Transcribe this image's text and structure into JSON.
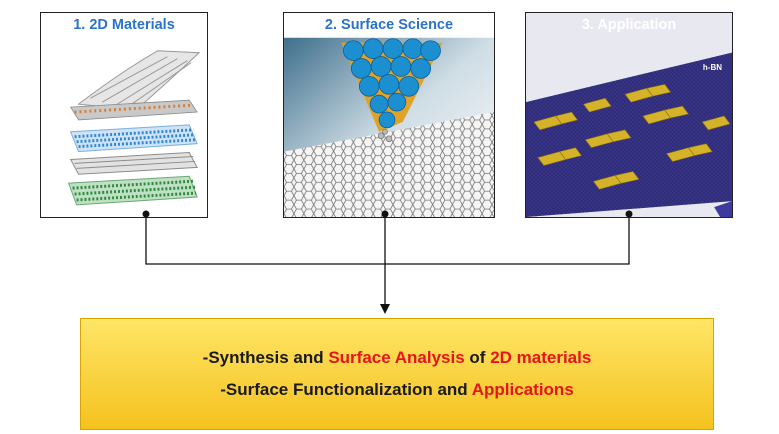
{
  "panels": [
    {
      "title": "1. 2D Materials"
    },
    {
      "title": "2. Surface Science"
    },
    {
      "title": "3. Application",
      "overlay_label": "h-BN"
    }
  ],
  "summary": {
    "line1": {
      "a": "-Synthesis and ",
      "b": "Surface Analysis",
      "c": " of ",
      "d": "2D materials"
    },
    "line2": {
      "a": "-Surface Functionalization and ",
      "b": "Applications"
    }
  },
  "colors": {
    "title_blue": "#2a73c9",
    "highlight_red": "#e3161d",
    "box_yellow": "#f4c21f",
    "substrate_purple": "#2b2870",
    "pad_gold": "#d4b22a"
  }
}
